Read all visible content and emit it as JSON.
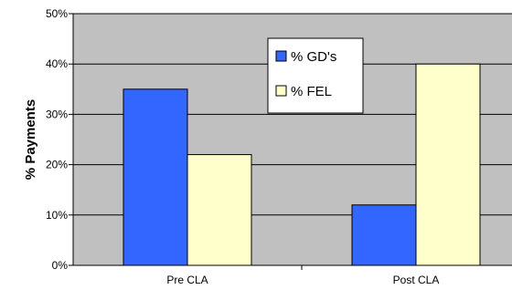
{
  "chart_data": {
    "type": "bar",
    "title": "",
    "xlabel": "",
    "ylabel": "% Payments",
    "categories": [
      "Pre CLA",
      "Post CLA"
    ],
    "series": [
      {
        "name": "% GD's",
        "values": [
          35,
          12
        ],
        "color": "#3366ff"
      },
      {
        "name": "% FEL",
        "values": [
          22,
          40
        ],
        "color": "#ffffcc"
      }
    ],
    "ylim": [
      0,
      50
    ],
    "yticks": [
      0,
      10,
      20,
      30,
      40,
      50
    ],
    "ytick_labels": [
      "0%",
      "10%",
      "20%",
      "30%",
      "40%",
      "50%"
    ],
    "grid": true,
    "legend_position": "top-center",
    "plot_background": "#c0c0c0"
  }
}
